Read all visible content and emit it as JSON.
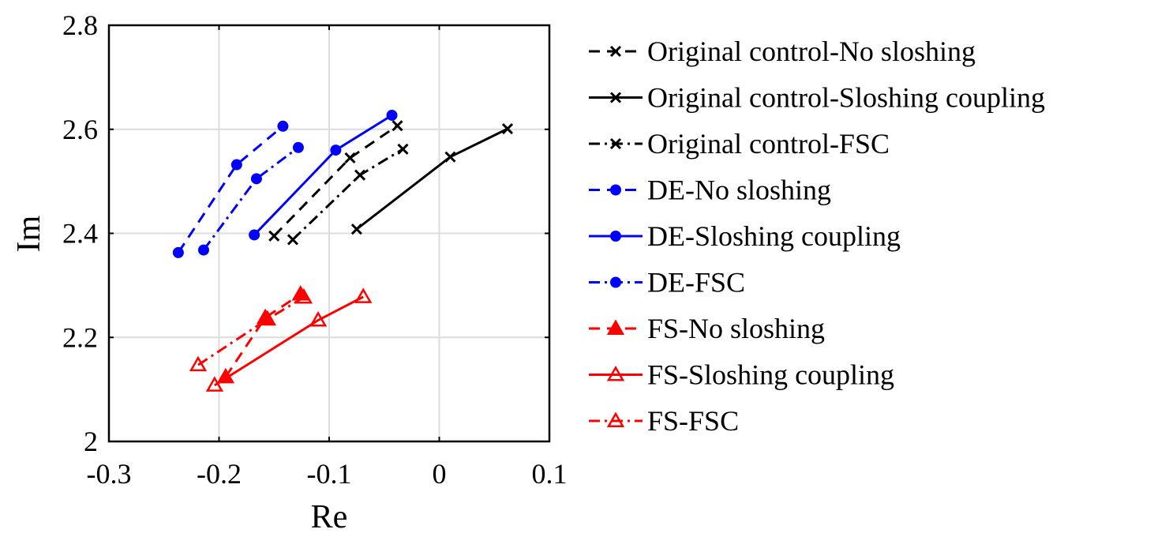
{
  "chart_data": {
    "type": "line",
    "title": "",
    "xlabel": "Re",
    "ylabel": "Im",
    "xlim": [
      -0.3,
      0.1
    ],
    "ylim": [
      2.0,
      2.8
    ],
    "xticks": [
      "-0.3",
      "-0.2",
      "-0.1",
      "0",
      "0.1"
    ],
    "yticks": [
      "2",
      "2.2",
      "2.4",
      "2.6",
      "2.8"
    ],
    "grid": true,
    "legend_position": "outside-right",
    "series": [
      {
        "name": "Original control-No sloshing",
        "color": "#000000",
        "line_style": "dashed",
        "marker": "x",
        "points": [
          [
            -0.15,
            2.395
          ],
          [
            -0.081,
            2.545
          ],
          [
            -0.038,
            2.607
          ]
        ]
      },
      {
        "name": "Original control-Sloshing coupling",
        "color": "#000000",
        "line_style": "solid",
        "marker": "x",
        "points": [
          [
            -0.075,
            2.408
          ],
          [
            0.01,
            2.547
          ],
          [
            0.062,
            2.601
          ]
        ]
      },
      {
        "name": "Original control-FSC",
        "color": "#000000",
        "line_style": "dashdot",
        "marker": "x",
        "points": [
          [
            -0.133,
            2.388
          ],
          [
            -0.072,
            2.512
          ],
          [
            -0.033,
            2.562
          ]
        ]
      },
      {
        "name": "DE-No sloshing",
        "color": "#0000ff",
        "line_style": "dashed",
        "marker": "filled-circle",
        "points": [
          [
            -0.237,
            2.363
          ],
          [
            -0.184,
            2.532
          ],
          [
            -0.142,
            2.606
          ]
        ]
      },
      {
        "name": "DE-Sloshing coupling",
        "color": "#0000ff",
        "line_style": "solid",
        "marker": "filled-circle",
        "points": [
          [
            -0.168,
            2.397
          ],
          [
            -0.094,
            2.56
          ],
          [
            -0.043,
            2.627
          ]
        ]
      },
      {
        "name": "DE-FSC",
        "color": "#0000ff",
        "line_style": "dashdot",
        "marker": "filled-circle",
        "points": [
          [
            -0.214,
            2.368
          ],
          [
            -0.166,
            2.505
          ],
          [
            -0.128,
            2.565
          ]
        ]
      },
      {
        "name": "FS-No sloshing",
        "color": "#ff0000",
        "line_style": "dashed",
        "marker": "filled-triangle",
        "points": [
          [
            -0.194,
            2.124
          ],
          [
            -0.158,
            2.238
          ],
          [
            -0.126,
            2.283
          ]
        ]
      },
      {
        "name": "FS-Sloshing coupling",
        "color": "#ff0000",
        "line_style": "solid",
        "marker": "open-triangle",
        "points": [
          [
            -0.204,
            2.108
          ],
          [
            -0.11,
            2.233
          ],
          [
            -0.069,
            2.278
          ]
        ]
      },
      {
        "name": "FS-FSC",
        "color": "#ff0000",
        "line_style": "dashdot",
        "marker": "open-triangle",
        "points": [
          [
            -0.219,
            2.147
          ],
          [
            -0.156,
            2.235
          ],
          [
            -0.123,
            2.277
          ]
        ]
      }
    ]
  }
}
